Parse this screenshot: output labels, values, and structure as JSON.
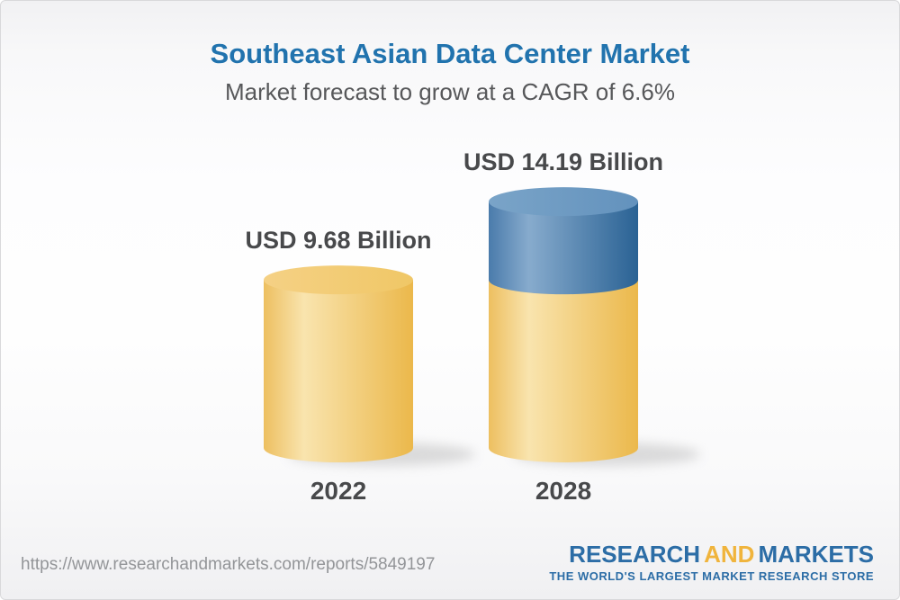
{
  "header": {
    "title": "Southeast Asian Data Center Market",
    "subtitle": "Market forecast to grow at a CAGR of 6.6%"
  },
  "chart_data": {
    "type": "bar",
    "variant": "3d-stacked-cylinder",
    "title": "Southeast Asian Data Center Market",
    "subtitle": "Market forecast to grow at a CAGR of 6.6%",
    "cagr_percent": 6.6,
    "unit": "USD Billion",
    "categories": [
      "2022",
      "2028"
    ],
    "values": [
      9.68,
      14.19
    ],
    "bars": [
      {
        "category": "2022",
        "total": 9.68,
        "label": "USD 9.68 Billion",
        "segments": [
          {
            "value": 9.68,
            "color": "gold"
          }
        ]
      },
      {
        "category": "2028",
        "total": 14.19,
        "label": "USD 14.19 Billion",
        "segments": [
          {
            "value": 9.68,
            "color": "gold"
          },
          {
            "value": 4.51,
            "color": "blue"
          }
        ]
      }
    ],
    "palette": {
      "gold": {
        "body": [
          "#EDBF60",
          "#F9E4AE",
          "#EBB84B"
        ],
        "top": [
          "#F5D185",
          "#F0C766"
        ]
      },
      "blue": {
        "body": [
          "#4A7BAB",
          "#87ABCD",
          "#2A6294"
        ],
        "top": [
          "#7AA4C8",
          "#6392BD"
        ]
      }
    },
    "axis": {
      "x_labels": [
        "2022",
        "2028"
      ],
      "y_axis_visible": false,
      "grid": false,
      "legend": false
    }
  },
  "footer": {
    "url": "https://www.researchandmarkets.com/reports/5849197",
    "logo": {
      "word1": "RESEARCH",
      "word2": "AND",
      "word3": "MARKETS",
      "tagline": "THE WORLD'S LARGEST MARKET RESEARCH STORE",
      "blue": "#2C6DA6",
      "gold": "#F0B43C"
    }
  },
  "colors": {
    "title_blue": "#2173AE",
    "subtitle_gray": "#57585A",
    "label_gray": "#48494B",
    "url_gray": "#939598"
  }
}
